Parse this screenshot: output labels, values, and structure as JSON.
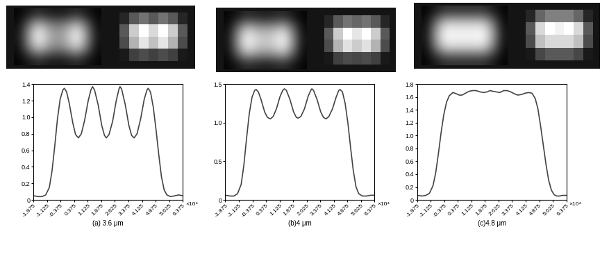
{
  "chart_data": [
    {
      "type": "line",
      "xlabel": "(a) 3.6 μm",
      "annotation": "×10⁴",
      "color": "#444444",
      "x": [
        -1.875,
        -1.6,
        -1.4,
        -1.2,
        -1.0,
        -0.85,
        -0.7,
        -0.55,
        -0.4,
        -0.25,
        -0.17,
        -0.05,
        0.1,
        0.3,
        0.45,
        0.61,
        0.77,
        0.95,
        1.15,
        1.3,
        1.39,
        1.5,
        1.7,
        1.9,
        2.05,
        2.15,
        2.3,
        2.5,
        2.7,
        2.85,
        2.91,
        3.0,
        3.2,
        3.4,
        3.55,
        3.69,
        3.85,
        4.05,
        4.25,
        4.4,
        4.47,
        4.6,
        4.75,
        4.9,
        5.05,
        5.2,
        5.35,
        5.5,
        5.7,
        5.95,
        6.15,
        6.375
      ],
      "values": [
        0.05,
        0.04,
        0.04,
        0.06,
        0.15,
        0.35,
        0.65,
        0.98,
        1.22,
        1.33,
        1.35,
        1.31,
        1.17,
        0.93,
        0.79,
        0.75,
        0.8,
        0.96,
        1.2,
        1.33,
        1.37,
        1.33,
        1.15,
        0.9,
        0.78,
        0.75,
        0.79,
        0.95,
        1.2,
        1.34,
        1.37,
        1.34,
        1.15,
        0.9,
        0.78,
        0.75,
        0.8,
        0.98,
        1.22,
        1.33,
        1.35,
        1.3,
        1.12,
        0.85,
        0.55,
        0.28,
        0.12,
        0.06,
        0.04,
        0.05,
        0.06,
        0.05
      ],
      "xlim": [
        -1.875,
        6.375
      ],
      "xticks": [
        -1.875,
        -1.125,
        -0.375,
        0.375,
        1.125,
        1.875,
        2.625,
        3.375,
        4.125,
        4.875,
        5.625,
        6.375
      ],
      "ylim": [
        0,
        1.4
      ],
      "yticks": [
        0,
        0.2,
        0.4,
        0.6,
        0.8,
        {
          "value": 1,
          "label": "1.0"
        },
        1.2,
        1.4
      ],
      "images": {
        "value_range": [
          0,
          1
        ],
        "blurred": [
          [
            0.02,
            0.08,
            0.15,
            0.1,
            0.08,
            0.1,
            0.15,
            0.08,
            0.02
          ],
          [
            0.05,
            0.45,
            0.8,
            0.6,
            0.5,
            0.6,
            0.8,
            0.45,
            0.05
          ],
          [
            0.08,
            0.6,
            1.0,
            0.75,
            0.6,
            0.75,
            1.0,
            0.6,
            0.08
          ],
          [
            0.05,
            0.45,
            0.8,
            0.6,
            0.5,
            0.6,
            0.8,
            0.45,
            0.05
          ],
          [
            0.02,
            0.08,
            0.15,
            0.1,
            0.08,
            0.1,
            0.15,
            0.08,
            0.02
          ]
        ],
        "pixelated": [
          [
            0.15,
            0.35,
            0.45,
            0.35,
            0.45,
            0.35,
            0.15
          ],
          [
            0.35,
            0.8,
            1.0,
            0.85,
            1.0,
            0.8,
            0.35
          ],
          [
            0.3,
            0.7,
            0.9,
            0.75,
            0.9,
            0.7,
            0.3
          ],
          [
            0.1,
            0.25,
            0.3,
            0.25,
            0.3,
            0.25,
            0.1
          ]
        ]
      }
    },
    {
      "type": "line",
      "xlabel": "(b)4 μm",
      "annotation": "×10⁴",
      "color": "#444444",
      "x": [
        -1.875,
        -1.6,
        -1.4,
        -1.2,
        -1.0,
        -0.85,
        -0.7,
        -0.55,
        -0.4,
        -0.25,
        -0.17,
        -0.05,
        0.1,
        0.3,
        0.45,
        0.61,
        0.77,
        0.95,
        1.15,
        1.3,
        1.39,
        1.5,
        1.7,
        1.9,
        2.05,
        2.15,
        2.3,
        2.5,
        2.7,
        2.85,
        2.91,
        3.0,
        3.2,
        3.4,
        3.55,
        3.69,
        3.85,
        4.05,
        4.25,
        4.4,
        4.47,
        4.6,
        4.75,
        4.9,
        5.05,
        5.2,
        5.35,
        5.5,
        5.7,
        5.95,
        6.15,
        6.375
      ],
      "values": [
        0.06,
        0.05,
        0.05,
        0.08,
        0.2,
        0.45,
        0.8,
        1.12,
        1.33,
        1.42,
        1.43,
        1.4,
        1.3,
        1.14,
        1.07,
        1.05,
        1.08,
        1.18,
        1.34,
        1.42,
        1.44,
        1.42,
        1.3,
        1.14,
        1.07,
        1.06,
        1.08,
        1.18,
        1.34,
        1.42,
        1.44,
        1.42,
        1.3,
        1.14,
        1.07,
        1.05,
        1.08,
        1.18,
        1.33,
        1.42,
        1.43,
        1.4,
        1.25,
        1.0,
        0.68,
        0.38,
        0.17,
        0.08,
        0.05,
        0.05,
        0.06,
        0.06
      ],
      "xlim": [
        -1.875,
        6.375
      ],
      "xticks": [
        -1.875,
        -1.125,
        -0.375,
        0.375,
        1.125,
        1.875,
        2.625,
        3.375,
        4.125,
        4.875,
        5.625,
        6.375
      ],
      "ylim": [
        0,
        1.5
      ],
      "yticks": [
        0,
        0.5,
        {
          "value": 1,
          "label": "1.0"
        },
        1.5
      ],
      "images": {
        "value_range": [
          0,
          1
        ],
        "blurred": [
          [
            0.02,
            0.08,
            0.15,
            0.12,
            0.1,
            0.12,
            0.15,
            0.08,
            0.02
          ],
          [
            0.05,
            0.45,
            0.8,
            0.7,
            0.65,
            0.7,
            0.8,
            0.45,
            0.05
          ],
          [
            0.08,
            0.6,
            1.0,
            0.88,
            0.8,
            0.88,
            1.0,
            0.6,
            0.08
          ],
          [
            0.05,
            0.45,
            0.8,
            0.7,
            0.65,
            0.7,
            0.8,
            0.45,
            0.05
          ],
          [
            0.02,
            0.08,
            0.15,
            0.12,
            0.1,
            0.12,
            0.15,
            0.08,
            0.02
          ]
        ],
        "pixelated": [
          [
            0.15,
            0.35,
            0.45,
            0.4,
            0.45,
            0.35,
            0.15
          ],
          [
            0.35,
            0.8,
            1.0,
            0.9,
            1.0,
            0.8,
            0.35
          ],
          [
            0.3,
            0.7,
            0.88,
            0.8,
            0.88,
            0.7,
            0.3
          ],
          [
            0.1,
            0.25,
            0.3,
            0.28,
            0.3,
            0.25,
            0.1
          ]
        ]
      }
    },
    {
      "type": "line",
      "xlabel": "(c)4.8 μm",
      "annotation": "×10⁴",
      "color": "#444444",
      "x": [
        -1.875,
        -1.6,
        -1.4,
        -1.2,
        -1.0,
        -0.85,
        -0.7,
        -0.55,
        -0.4,
        -0.25,
        -0.1,
        0.1,
        0.3,
        0.45,
        0.61,
        0.8,
        1.0,
        1.2,
        1.39,
        1.6,
        1.8,
        2.0,
        2.15,
        2.3,
        2.5,
        2.7,
        2.91,
        3.1,
        3.3,
        3.5,
        3.69,
        3.9,
        4.1,
        4.3,
        4.47,
        4.65,
        4.8,
        4.95,
        5.1,
        5.25,
        5.4,
        5.55,
        5.7,
        5.85,
        6.0,
        6.15,
        6.375
      ],
      "values": [
        0.07,
        0.06,
        0.07,
        0.1,
        0.22,
        0.42,
        0.72,
        1.05,
        1.33,
        1.52,
        1.62,
        1.67,
        1.65,
        1.63,
        1.63,
        1.66,
        1.69,
        1.7,
        1.7,
        1.68,
        1.67,
        1.68,
        1.7,
        1.69,
        1.68,
        1.67,
        1.7,
        1.7,
        1.68,
        1.65,
        1.63,
        1.64,
        1.66,
        1.67,
        1.66,
        1.58,
        1.42,
        1.15,
        0.85,
        0.55,
        0.3,
        0.15,
        0.08,
        0.06,
        0.06,
        0.07,
        0.07
      ],
      "xlim": [
        -1.875,
        6.375
      ],
      "xticks": [
        -1.875,
        -1.125,
        -0.375,
        0.375,
        1.125,
        1.875,
        2.625,
        3.375,
        4.125,
        4.875,
        5.625,
        6.375
      ],
      "ylim": [
        0,
        1.8
      ],
      "yticks": [
        0,
        0.2,
        0.4,
        0.6,
        0.8,
        {
          "value": 1,
          "label": "1.0"
        },
        1.2,
        1.4,
        1.6,
        1.8
      ],
      "images": {
        "value_range": [
          0,
          1
        ],
        "blurred": [
          [
            0.02,
            0.1,
            0.18,
            0.18,
            0.18,
            0.18,
            0.18,
            0.1,
            0.02
          ],
          [
            0.05,
            0.5,
            0.85,
            0.85,
            0.85,
            0.85,
            0.85,
            0.5,
            0.05
          ],
          [
            0.08,
            0.65,
            1.0,
            0.98,
            0.97,
            0.98,
            1.0,
            0.65,
            0.08
          ],
          [
            0.05,
            0.5,
            0.85,
            0.85,
            0.85,
            0.85,
            0.85,
            0.5,
            0.05
          ],
          [
            0.02,
            0.1,
            0.18,
            0.18,
            0.18,
            0.18,
            0.18,
            0.1,
            0.02
          ]
        ],
        "pixelated": [
          [
            0.15,
            0.4,
            0.5,
            0.5,
            0.5,
            0.4,
            0.15
          ],
          [
            0.35,
            0.85,
            1.0,
            0.95,
            1.0,
            0.85,
            0.35
          ],
          [
            0.3,
            0.75,
            0.85,
            0.85,
            0.85,
            0.75,
            0.3
          ],
          [
            0.1,
            0.28,
            0.35,
            0.35,
            0.35,
            0.28,
            0.1
          ]
        ]
      }
    }
  ]
}
